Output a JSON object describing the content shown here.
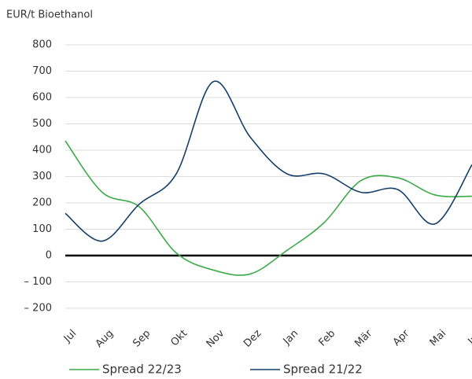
{
  "chart_data": {
    "type": "line",
    "y_label": "EUR/t Bioethanol",
    "categories": [
      "Jul",
      "Aug",
      "Sep",
      "Okt",
      "Nov",
      "Dez",
      "Jan",
      "Feb",
      "Mär",
      "Apr",
      "Mai",
      "Jun"
    ],
    "series": [
      {
        "name": "Spread 22/23",
        "color": "#3daa4a",
        "values": [
          435,
          240,
          185,
          10,
          -55,
          -70,
          20,
          125,
          285,
          295,
          230,
          225
        ]
      },
      {
        "name": "Spread 21/22",
        "color": "#153e68",
        "values": [
          160,
          55,
          195,
          310,
          660,
          450,
          310,
          310,
          240,
          250,
          120,
          345
        ]
      }
    ],
    "ylim": [
      -200,
      800
    ],
    "yticks": [
      {
        "value": -200,
        "label": "– 200"
      },
      {
        "value": -100,
        "label": "– 100"
      },
      0,
      100,
      200,
      300,
      400,
      500,
      600,
      700,
      800
    ],
    "grid": true,
    "zero_line": true,
    "legend": "bottom"
  }
}
